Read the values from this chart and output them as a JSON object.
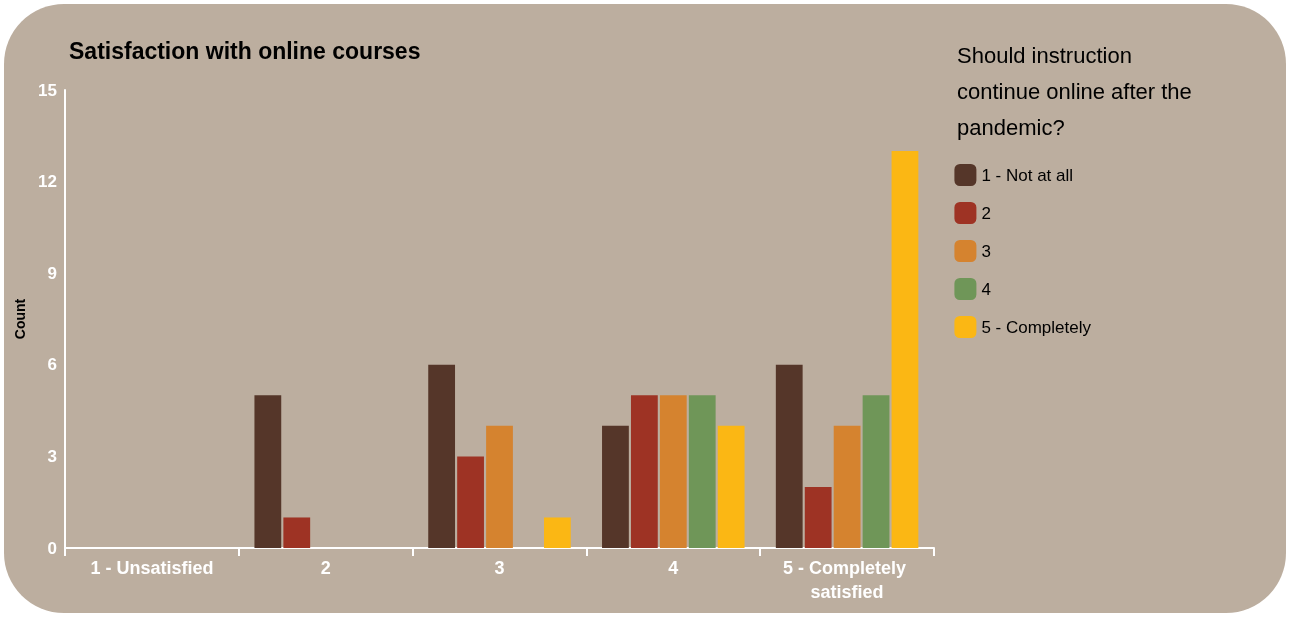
{
  "chart_data": {
    "type": "bar",
    "title": "Satisfaction with online courses",
    "ylabel": "Count",
    "legend_title": "Should instruction continue online after the pandemic?",
    "categories": [
      "1 - Unsatisfied",
      "2",
      "3",
      "4",
      "5 - Completely satisfied"
    ],
    "series": [
      {
        "name": "1 - Not at all",
        "color": "#553629",
        "values": [
          0,
          5,
          6,
          4,
          6
        ]
      },
      {
        "name": "2",
        "color": "#9e3324",
        "values": [
          0,
          1,
          3,
          5,
          2
        ]
      },
      {
        "name": "3",
        "color": "#d5832f",
        "values": [
          0,
          0,
          4,
          5,
          4
        ]
      },
      {
        "name": "4",
        "color": "#6f9658",
        "values": [
          0,
          0,
          0,
          5,
          5
        ]
      },
      {
        "name": "5 - Completely",
        "color": "#fbb714",
        "values": [
          0,
          0,
          1,
          4,
          13
        ]
      }
    ],
    "ylim": [
      0,
      15
    ],
    "yticks": [
      0,
      3,
      6,
      9,
      12,
      15
    ],
    "grid": false,
    "legend": "top right"
  }
}
